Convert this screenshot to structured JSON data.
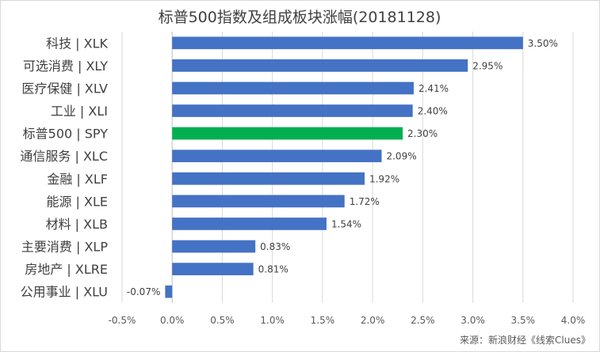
{
  "chart_data": {
    "type": "bar",
    "orientation": "horizontal",
    "title": "标普500指数及组成板块涨幅(20181128)",
    "categories": [
      "科技 | XLK",
      "可选消费 | XLY",
      "医疗保健 | XLV",
      "工业 | XLI",
      "标普500 | SPY",
      "通信服务 | XLC",
      "金融 | XLF",
      "能源 | XLE",
      "材料 | XLB",
      "主要消费 | XLP",
      "房地产 | XLRE",
      "公用事业 | XLU"
    ],
    "values": [
      3.5,
      2.95,
      2.41,
      2.4,
      2.3,
      2.09,
      1.92,
      1.72,
      1.54,
      0.83,
      0.81,
      -0.07
    ],
    "value_labels": [
      "3.50%",
      "2.95%",
      "2.41%",
      "2.40%",
      "2.30%",
      "2.09%",
      "1.92%",
      "1.72%",
      "1.54%",
      "0.83%",
      "0.81%",
      "-0.07%"
    ],
    "bar_colors": [
      "#4472c4",
      "#4472c4",
      "#4472c4",
      "#4472c4",
      "#00b050",
      "#4472c4",
      "#4472c4",
      "#4472c4",
      "#4472c4",
      "#4472c4",
      "#4472c4",
      "#4472c4"
    ],
    "xlim": [
      -0.5,
      4.0
    ],
    "xticks": [
      -0.5,
      0,
      0.5,
      1,
      1.5,
      2,
      2.5,
      3,
      3.5,
      4
    ],
    "xtick_labels": [
      "-0.5%",
      "0.0%",
      "0.5%",
      "1.0%",
      "1.5%",
      "2.0%",
      "2.5%",
      "3.0%",
      "3.5%",
      "4.0%"
    ],
    "grid": "vertical",
    "legend": "none",
    "xlabel": "",
    "ylabel": ""
  },
  "source_note": "来源：新浪财经《线索Clues》",
  "colors": {
    "bar": "#4472c4",
    "highlight": "#00b050",
    "grid": "#d9d9d9",
    "axis": "#bfbfbf"
  }
}
